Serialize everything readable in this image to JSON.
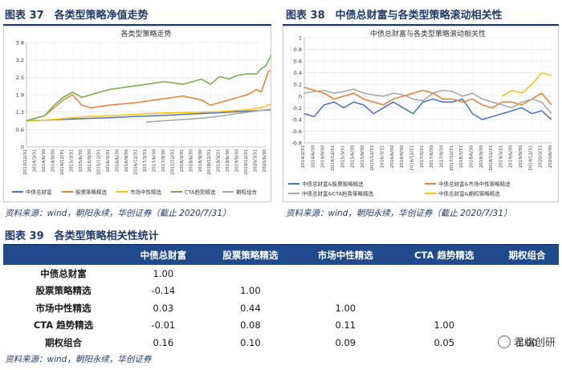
{
  "fig37": {
    "title": "图表 37　各类型策略净值走势",
    "source": "资料来源：wind，朝阳永续，华创证券（截止 2020/7/31）"
  },
  "fig38": {
    "title": "图表 38　中债总财富与各类型策略滚动相关性",
    "source": "资料来源：wind，朝阳永续，华创证券（截止 2020/7/31）"
  },
  "fig39": {
    "title": "图表 39　各类型策略相关性统计",
    "source": "资料来源：wind，朝阳永续，华创证券"
  },
  "watermark": "君临创研",
  "chart_data": [
    {
      "type": "line",
      "title": "各类型策略走势",
      "ylim": [
        0,
        4
      ],
      "yticks": [
        "0",
        "0.6",
        "1.3",
        "1.9",
        "2.5",
        "3.2",
        "3.8"
      ],
      "xticks": [
        "2013/12/31",
        "2014/3/31",
        "2014/6/30",
        "2014/9/30",
        "2014/12/31",
        "2015/3/31",
        "2015/6/30",
        "2015/9/30",
        "2015/12/31",
        "2016/3/31",
        "2016/6/30",
        "2016/9/30",
        "2016/12/31",
        "2017/3/31",
        "2017/6/30",
        "2017/9/30",
        "2017/12/31",
        "2018/3/31",
        "2018/6/30",
        "2018/9/30",
        "2018/12/31",
        "2019/3/31",
        "2019/6/30",
        "2019/9/30",
        "2019/12/31",
        "2020/3/31",
        "2020/6/30"
      ],
      "grid": true,
      "legend_position": "bottom",
      "series": [
        {
          "name": "中债总财富",
          "color": "#4472c4",
          "x": [
            0,
            3,
            6,
            9,
            12,
            15,
            18,
            21,
            24,
            26.6
          ],
          "values": [
            1.0,
            1.04,
            1.08,
            1.12,
            1.17,
            1.21,
            1.26,
            1.31,
            1.37,
            1.42
          ]
        },
        {
          "name": "股票策略精选",
          "color": "#ed7d31",
          "x": [
            0,
            2,
            4,
            5,
            6,
            7,
            9,
            12,
            15,
            17,
            19,
            20,
            21,
            22,
            23,
            24,
            25,
            25.5,
            26,
            26.3,
            26.6
          ],
          "values": [
            1.0,
            1.2,
            1.8,
            2.0,
            1.6,
            1.5,
            1.6,
            1.7,
            1.85,
            1.95,
            1.8,
            1.6,
            1.7,
            1.8,
            1.9,
            2.0,
            2.2,
            2.1,
            2.6,
            2.9,
            2.95
          ]
        },
        {
          "name": "市场中性精选",
          "color": "#ffc000",
          "x": [
            0,
            3,
            6,
            9,
            12,
            15,
            18,
            21,
            24,
            25.5,
            26.6
          ],
          "values": [
            1.0,
            1.05,
            1.15,
            1.2,
            1.25,
            1.3,
            1.32,
            1.35,
            1.42,
            1.5,
            1.65
          ]
        },
        {
          "name": "CTA趋势精选",
          "color": "#70ad47",
          "x": [
            0,
            2,
            3,
            4,
            5,
            6,
            7,
            9,
            11,
            13,
            15,
            17,
            18,
            19,
            20,
            21,
            22,
            23,
            24,
            25,
            25.5,
            26,
            26.3,
            26.6
          ],
          "values": [
            1.0,
            1.2,
            1.6,
            1.9,
            2.1,
            1.9,
            2.0,
            2.2,
            2.3,
            2.4,
            2.5,
            2.4,
            2.5,
            2.6,
            2.4,
            2.7,
            2.6,
            2.75,
            2.8,
            2.8,
            3.0,
            3.1,
            3.3,
            3.55
          ]
        },
        {
          "name": "期权组合",
          "color": "#a5a5a5",
          "x": [
            13,
            15,
            17,
            19,
            21,
            23,
            25,
            26.6
          ],
          "values": [
            0.95,
            1.0,
            1.05,
            1.1,
            1.18,
            1.28,
            1.38,
            1.45
          ]
        }
      ]
    },
    {
      "type": "line",
      "title": "中债总财富与各类型策略滚动相关性",
      "ylim": [
        -0.8,
        1.0
      ],
      "yticks": [
        "1",
        "0.8",
        "0.6",
        "0.4",
        "0.2",
        "0",
        "-0.2",
        "-0.4",
        "-0.6",
        "-0.8"
      ],
      "xticks": [
        "2014/2/31",
        "2014/6/30",
        "2014/9/30",
        "2014/12/31",
        "2015/3/31",
        "2015/6/30",
        "2015/9/30",
        "2015/12/31",
        "2016/3/31",
        "2016/6/30",
        "2016/9/30",
        "2016/12/31",
        "2017/3/31",
        "2017/6/30",
        "2017/9/30",
        "2017/12/31",
        "2018/3/31",
        "2018/6/30",
        "2018/9/30",
        "2018/12/31",
        "2019/3/31",
        "2019/6/30",
        "2019/9/30",
        "2019/12/31",
        "2020/3/31",
        "2020/6/30"
      ],
      "grid": true,
      "legend_position": "bottom",
      "series": [
        {
          "name": "中债总财富&股票策略精选",
          "color": "#4472c4",
          "x": [
            0,
            1,
            2,
            3,
            4,
            5,
            6,
            7,
            8,
            9,
            10,
            11,
            12,
            13,
            14,
            15,
            16,
            17,
            18,
            19,
            20,
            21,
            22,
            23,
            24,
            25
          ],
          "values": [
            -0.3,
            -0.35,
            -0.15,
            -0.1,
            -0.2,
            -0.1,
            -0.15,
            -0.3,
            -0.2,
            -0.1,
            -0.2,
            -0.3,
            -0.1,
            -0.05,
            -0.1,
            -0.1,
            -0.05,
            -0.3,
            -0.4,
            -0.35,
            -0.3,
            -0.25,
            -0.2,
            -0.3,
            -0.25,
            -0.4
          ]
        },
        {
          "name": "中债总财富&市场中性策略精选",
          "color": "#ed7d31",
          "x": [
            0,
            1,
            2,
            3,
            4,
            5,
            6,
            7,
            8,
            9,
            10,
            11,
            12,
            13,
            14,
            15,
            16,
            17,
            18,
            19,
            20,
            21,
            22,
            23,
            24,
            25
          ],
          "values": [
            0.15,
            0.1,
            0.05,
            -0.05,
            0.0,
            0.05,
            -0.05,
            -0.1,
            -0.15,
            -0.05,
            0.0,
            0.05,
            0.1,
            0.05,
            -0.05,
            -0.05,
            -0.1,
            -0.05,
            -0.15,
            -0.2,
            -0.1,
            -0.1,
            -0.15,
            -0.05,
            0.05,
            -0.15
          ]
        },
        {
          "name": "中债总财富&CTA趋势策略精选",
          "color": "#a5a5a5",
          "x": [
            0,
            1,
            2,
            3,
            4,
            5,
            6,
            7,
            8,
            9,
            10,
            11,
            12,
            13,
            14,
            15,
            16,
            17,
            18,
            19,
            20,
            21,
            22,
            23,
            24,
            25
          ],
          "values": [
            0.05,
            0.08,
            0.1,
            0.05,
            0.08,
            0.12,
            0.05,
            0.02,
            0.0,
            0.05,
            0.02,
            -0.05,
            -0.08,
            0.05,
            0.1,
            0.08,
            0.0,
            0.05,
            -0.05,
            -0.1,
            -0.15,
            -0.2,
            -0.1,
            -0.05,
            -0.1,
            -0.3
          ]
        },
        {
          "name": "中债总财富&期权策略精选",
          "color": "#ffc000",
          "x": [
            20,
            21,
            22,
            23,
            24,
            25
          ],
          "values": [
            0.0,
            0.1,
            0.05,
            0.2,
            0.4,
            0.35
          ]
        }
      ]
    }
  ],
  "table": {
    "headers": [
      "",
      "中债总财富",
      "股票策略精选",
      "市场中性精选",
      "CTA 趋势精选",
      "期权组合"
    ],
    "rows": [
      {
        "label": "中债总财富",
        "cells": [
          "1.00",
          "",
          "",
          "",
          ""
        ]
      },
      {
        "label": "股票策略精选",
        "cells": [
          "-0.14",
          "1.00",
          "",
          "",
          ""
        ]
      },
      {
        "label": "市场中性精选",
        "cells": [
          "0.03",
          "0.44",
          "1.00",
          "",
          ""
        ]
      },
      {
        "label": "CTA 趋势精选",
        "cells": [
          "-0.01",
          "0.08",
          "0.11",
          "1.00",
          ""
        ]
      },
      {
        "label": "期权组合",
        "cells": [
          "0.16",
          "0.10",
          "0.09",
          "0.05",
          "1.00"
        ]
      }
    ]
  }
}
